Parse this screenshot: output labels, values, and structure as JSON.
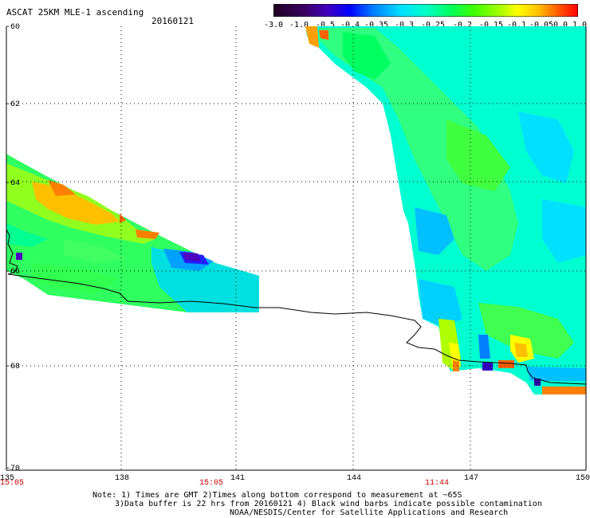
{
  "header": {
    "title": "ASCAT 25KM MLE-1 ascending",
    "date": "20160121"
  },
  "colorbar": {
    "tick_labels": [
      "-3.0",
      "-1.0",
      "-0.5",
      "-0.4",
      "-0.35",
      "-0.3",
      "-0.25",
      "-0.2",
      "-0.15",
      "-0.1",
      "-0.05",
      "0.0",
      "1.0"
    ],
    "colors": [
      "#200020",
      "#4000a0",
      "#0000ff",
      "#0080ff",
      "#00e0ff",
      "#00ffc0",
      "#00ff60",
      "#40ff00",
      "#a0ff00",
      "#ffff00",
      "#ffc000",
      "#ff6000",
      "#ff0000"
    ]
  },
  "axes": {
    "y_labels": [
      "-60",
      "-62",
      "-64",
      "-66",
      "-68",
      "-70"
    ],
    "x_labels": [
      "135",
      "138",
      "141",
      "144",
      "147",
      "150"
    ],
    "time_labels": [
      "15:05",
      "15:05",
      "11:44"
    ]
  },
  "notes": {
    "line1": "Note: 1) Times are GMT 2)Times along bottom correspond to measurement at ~65S",
    "line2": "3)Data buffer is 22 hrs from 20160121 4) Black wind barbs indicate possible contamination",
    "line3": "NOAA/NESDIS/Center for Satellite Applications and Research"
  },
  "style": {
    "grid_color": "#000000",
    "time_label_color": "#cc0000",
    "coastline_color": "#000000"
  }
}
